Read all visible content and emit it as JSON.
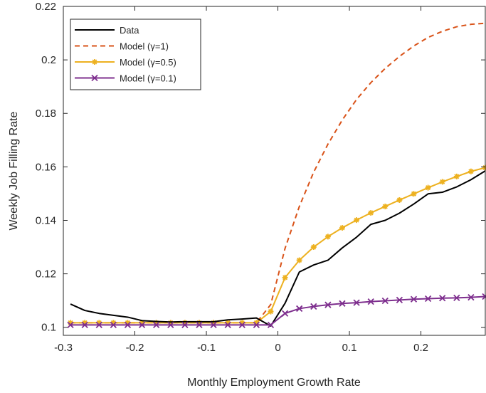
{
  "chart_data": {
    "type": "line",
    "title": "",
    "xlabel": "Monthly Employment Growth Rate",
    "ylabel": "Weekly Job Filling Rate",
    "xlim": [
      -0.3,
      0.29
    ],
    "ylim": [
      0.097,
      0.22
    ],
    "xticks": [
      -0.3,
      -0.2,
      -0.1,
      0,
      0.1,
      0.2
    ],
    "xtick_labels": [
      "-0.3",
      "-0.2",
      "-0.1",
      "0",
      "0.1",
      "0.2"
    ],
    "yticks": [
      0.1,
      0.12,
      0.14,
      0.16,
      0.18,
      0.2,
      0.22
    ],
    "ytick_labels": [
      "0.1",
      "0.12",
      "0.14",
      "0.16",
      "0.18",
      "0.2",
      "0.22"
    ],
    "grid": false,
    "legend_position": "top-left",
    "series": [
      {
        "name": "Data",
        "color": "#000000",
        "style": "solid",
        "marker": "none",
        "points": [
          [
            -0.29,
            0.1087
          ],
          [
            -0.27,
            0.1063
          ],
          [
            -0.25,
            0.1052
          ],
          [
            -0.23,
            0.1045
          ],
          [
            -0.21,
            0.1038
          ],
          [
            -0.19,
            0.1025
          ],
          [
            -0.17,
            0.1022
          ],
          [
            -0.15,
            0.102
          ],
          [
            -0.13,
            0.1021
          ],
          [
            -0.11,
            0.1021
          ],
          [
            -0.09,
            0.1021
          ],
          [
            -0.07,
            0.1028
          ],
          [
            -0.05,
            0.1031
          ],
          [
            -0.03,
            0.1035
          ],
          [
            -0.01,
            0.1005
          ],
          [
            0.01,
            0.109
          ],
          [
            0.03,
            0.1207
          ],
          [
            0.05,
            0.1233
          ],
          [
            0.07,
            0.1251
          ],
          [
            0.09,
            0.1297
          ],
          [
            0.11,
            0.1337
          ],
          [
            0.13,
            0.1385
          ],
          [
            0.15,
            0.14
          ],
          [
            0.17,
            0.1427
          ],
          [
            0.19,
            0.1461
          ],
          [
            0.21,
            0.1499
          ],
          [
            0.23,
            0.1505
          ],
          [
            0.25,
            0.1525
          ],
          [
            0.27,
            0.1552
          ],
          [
            0.29,
            0.1585
          ]
        ]
      },
      {
        "name": "Model (γ=1)",
        "color": "#D95319",
        "style": "dashed",
        "marker": "none",
        "points": [
          [
            -0.29,
            0.1017
          ],
          [
            -0.03,
            0.1017
          ],
          [
            -0.01,
            0.1085
          ],
          [
            0.01,
            0.1295
          ],
          [
            0.03,
            0.1452
          ],
          [
            0.05,
            0.158
          ],
          [
            0.07,
            0.1685
          ],
          [
            0.09,
            0.1775
          ],
          [
            0.11,
            0.1852
          ],
          [
            0.13,
            0.1915
          ],
          [
            0.15,
            0.1968
          ],
          [
            0.17,
            0.2013
          ],
          [
            0.19,
            0.2052
          ],
          [
            0.21,
            0.2084
          ],
          [
            0.23,
            0.2107
          ],
          [
            0.25,
            0.2124
          ],
          [
            0.27,
            0.2133
          ],
          [
            0.29,
            0.2137
          ]
        ]
      },
      {
        "name": "Model (γ=0.5)",
        "color": "#EDB120",
        "style": "solid",
        "marker": "asterisk",
        "points": [
          [
            -0.29,
            0.1017
          ],
          [
            -0.27,
            0.1017
          ],
          [
            -0.25,
            0.1017
          ],
          [
            -0.23,
            0.1017
          ],
          [
            -0.21,
            0.1017
          ],
          [
            -0.19,
            0.1017
          ],
          [
            -0.17,
            0.1017
          ],
          [
            -0.15,
            0.1017
          ],
          [
            -0.13,
            0.1017
          ],
          [
            -0.11,
            0.1017
          ],
          [
            -0.09,
            0.1017
          ],
          [
            -0.07,
            0.1017
          ],
          [
            -0.05,
            0.1017
          ],
          [
            -0.03,
            0.1017
          ],
          [
            -0.01,
            0.1059
          ],
          [
            0.01,
            0.1186
          ],
          [
            0.03,
            0.1251
          ],
          [
            0.05,
            0.13
          ],
          [
            0.07,
            0.1339
          ],
          [
            0.09,
            0.1372
          ],
          [
            0.11,
            0.1401
          ],
          [
            0.13,
            0.1428
          ],
          [
            0.15,
            0.1452
          ],
          [
            0.17,
            0.1476
          ],
          [
            0.19,
            0.1499
          ],
          [
            0.21,
            0.1522
          ],
          [
            0.23,
            0.1544
          ],
          [
            0.25,
            0.1564
          ],
          [
            0.27,
            0.1583
          ],
          [
            0.29,
            0.1597
          ]
        ]
      },
      {
        "name": "Model (γ=0.1)",
        "color": "#7E2F8E",
        "style": "solid",
        "marker": "x",
        "points": [
          [
            -0.29,
            0.1009
          ],
          [
            -0.27,
            0.1009
          ],
          [
            -0.25,
            0.1009
          ],
          [
            -0.23,
            0.1009
          ],
          [
            -0.21,
            0.1009
          ],
          [
            -0.19,
            0.1009
          ],
          [
            -0.17,
            0.1009
          ],
          [
            -0.15,
            0.1009
          ],
          [
            -0.13,
            0.1009
          ],
          [
            -0.11,
            0.1009
          ],
          [
            -0.09,
            0.1009
          ],
          [
            -0.07,
            0.1009
          ],
          [
            -0.05,
            0.1009
          ],
          [
            -0.03,
            0.1009
          ],
          [
            -0.01,
            0.1009
          ],
          [
            0.01,
            0.1052
          ],
          [
            0.03,
            0.107
          ],
          [
            0.05,
            0.1078
          ],
          [
            0.07,
            0.1084
          ],
          [
            0.09,
            0.1089
          ],
          [
            0.11,
            0.1092
          ],
          [
            0.13,
            0.1096
          ],
          [
            0.15,
            0.1099
          ],
          [
            0.17,
            0.1102
          ],
          [
            0.19,
            0.1105
          ],
          [
            0.21,
            0.1107
          ],
          [
            0.23,
            0.1109
          ],
          [
            0.25,
            0.111
          ],
          [
            0.27,
            0.1112
          ],
          [
            0.29,
            0.1115
          ]
        ]
      }
    ]
  }
}
